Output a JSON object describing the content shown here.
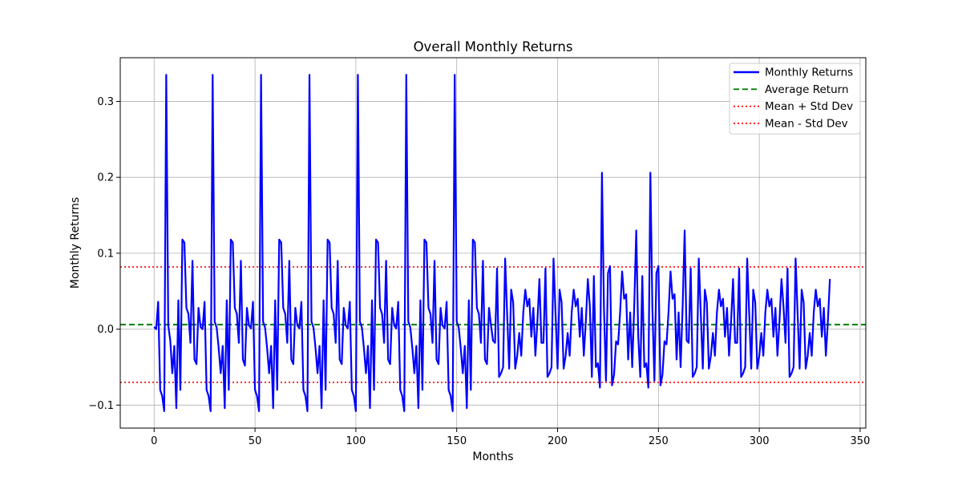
{
  "chart_data": {
    "type": "line",
    "title": "Overall Monthly Returns",
    "xlabel": "Months",
    "ylabel": "Monthly Returns",
    "xlim": [
      -16.8,
      352.8
    ],
    "ylim": [
      -0.1303,
      0.3575
    ],
    "xticks": [
      0,
      50,
      100,
      150,
      200,
      250,
      300,
      350
    ],
    "xtick_labels": [
      "0",
      "50",
      "100",
      "150",
      "200",
      "250",
      "300",
      "350"
    ],
    "yticks": [
      -0.1,
      0.0,
      0.1,
      0.2,
      0.3
    ],
    "ytick_labels": [
      "−0.1",
      "0.0",
      "0.1",
      "0.2",
      "0.3"
    ],
    "grid": true,
    "legend_position": "top-right",
    "colors": {
      "returns": "#0000ff",
      "average": "#008000",
      "std_bands": "#ff0000"
    },
    "series": [
      {
        "name": "Monthly Returns",
        "style": "solid",
        "x": [
          0,
          1,
          2,
          3,
          4,
          5,
          6,
          7,
          8,
          9,
          10,
          11,
          12,
          13,
          14,
          15,
          16,
          17,
          18,
          19,
          20,
          21,
          22,
          23,
          24,
          25,
          26,
          27,
          28,
          29,
          30,
          31,
          32,
          33,
          34,
          35,
          36,
          37,
          38,
          39,
          40,
          41,
          42,
          43,
          44,
          45,
          46,
          47,
          48,
          49,
          50,
          51,
          52,
          53,
          54,
          55,
          56,
          57,
          58,
          59,
          60,
          61,
          62,
          63,
          64,
          65,
          66,
          67,
          68,
          69,
          70,
          71,
          72,
          73,
          74,
          75,
          76,
          77,
          78,
          79,
          80,
          81,
          82,
          83,
          84,
          85,
          86,
          87,
          88,
          89,
          90,
          91,
          92,
          93,
          94,
          95,
          96,
          97,
          98,
          99,
          100,
          101,
          102,
          103,
          104,
          105,
          106,
          107,
          108,
          109,
          110,
          111,
          112,
          113,
          114,
          115,
          116,
          117,
          118,
          119,
          120,
          121,
          122,
          123,
          124,
          125,
          126,
          127,
          128,
          129,
          130,
          131,
          132,
          133,
          134,
          135,
          136,
          137,
          138,
          139,
          140,
          141,
          142,
          143,
          144,
          145,
          146,
          147,
          148,
          149,
          150,
          151,
          152,
          153,
          154,
          155,
          156,
          157,
          158,
          159,
          160,
          161,
          162,
          163,
          164,
          165,
          166,
          167,
          168,
          169,
          170,
          171,
          172,
          173,
          174,
          175,
          176,
          177,
          178,
          179,
          180,
          181,
          182,
          183,
          184,
          185,
          186,
          187,
          188,
          189,
          190,
          191,
          192,
          193,
          194,
          195,
          196,
          197,
          198,
          199,
          200,
          201,
          202,
          203,
          204,
          205,
          206,
          207,
          208,
          209,
          210,
          211,
          212,
          213,
          214,
          215,
          216,
          217,
          218,
          219,
          220,
          221,
          222,
          223,
          224,
          225,
          226,
          227,
          228,
          229,
          230,
          231,
          232,
          233,
          234,
          235,
          236,
          237,
          238,
          239,
          240,
          241,
          242,
          243,
          244,
          245,
          246,
          247,
          248,
          249,
          250,
          251,
          252,
          253,
          254,
          255,
          256,
          257,
          258,
          259,
          260,
          261,
          262,
          263,
          264,
          265,
          266,
          267,
          268,
          269,
          270,
          271,
          272,
          273,
          274,
          275,
          276,
          277,
          278,
          279,
          280,
          281,
          282,
          283,
          284,
          285,
          286,
          287,
          288,
          289,
          290,
          291,
          292,
          293,
          294,
          295,
          296,
          297,
          298,
          299,
          300,
          301,
          302,
          303,
          304,
          305,
          306,
          307,
          308,
          309,
          310,
          311,
          312,
          313,
          314,
          315,
          316,
          317,
          318,
          319,
          320,
          321,
          322,
          323,
          324,
          325,
          326,
          327,
          328,
          329,
          330,
          331,
          332,
          333,
          334,
          335
        ],
        "y": [
          0.003,
          0.0,
          0.036,
          -0.08,
          -0.088,
          -0.108,
          0.335,
          0.005,
          -0.015,
          -0.058,
          -0.022,
          -0.104,
          0.038,
          -0.08,
          0.118,
          0.114,
          0.028,
          0.02,
          -0.018,
          0.09,
          -0.04,
          -0.046,
          0.028,
          0.003,
          0.0,
          0.036,
          -0.08,
          -0.088,
          -0.108,
          0.335,
          0.01,
          0.002,
          -0.025,
          -0.058,
          -0.022,
          -0.104,
          0.038,
          -0.08,
          0.118,
          0.114,
          0.028,
          0.02,
          -0.018,
          0.09,
          -0.04,
          -0.048,
          0.028,
          0.005,
          0.001,
          0.036,
          -0.08,
          -0.088,
          -0.108,
          0.335,
          0.01,
          0.002,
          -0.025,
          -0.058,
          -0.022,
          -0.104,
          0.038,
          -0.08,
          0.118,
          0.114,
          0.028,
          0.02,
          -0.018,
          0.09,
          -0.04,
          -0.046,
          0.028,
          0.005,
          0.001,
          0.036,
          -0.08,
          -0.088,
          -0.108,
          0.335,
          0.01,
          0.002,
          -0.025,
          -0.058,
          -0.022,
          -0.104,
          0.038,
          -0.08,
          0.118,
          0.114,
          0.028,
          0.02,
          -0.018,
          0.09,
          -0.04,
          -0.046,
          0.028,
          0.005,
          0.001,
          0.036,
          -0.08,
          -0.088,
          -0.108,
          0.335,
          0.01,
          0.002,
          -0.025,
          -0.058,
          -0.022,
          -0.104,
          0.038,
          -0.08,
          0.118,
          0.114,
          0.028,
          0.02,
          -0.018,
          0.09,
          -0.04,
          -0.046,
          0.028,
          0.005,
          0.001,
          0.036,
          -0.08,
          -0.088,
          -0.108,
          0.335,
          0.01,
          0.002,
          -0.025,
          -0.058,
          -0.022,
          -0.104,
          0.038,
          -0.08,
          0.118,
          0.114,
          0.028,
          0.02,
          -0.018,
          0.09,
          -0.04,
          -0.046,
          0.028,
          0.005,
          0.001,
          0.036,
          -0.08,
          -0.088,
          -0.108,
          0.335,
          0.01,
          0.002,
          -0.025,
          -0.058,
          -0.022,
          -0.104,
          0.038,
          -0.08,
          0.118,
          0.114,
          0.028,
          0.02,
          -0.018,
          0.09,
          -0.04,
          -0.046,
          0.028,
          0.005,
          -0.015,
          -0.018,
          0.08,
          -0.063,
          -0.058,
          -0.05,
          0.093,
          0.02,
          -0.052,
          0.052,
          0.035,
          -0.052,
          -0.035,
          -0.005,
          -0.035,
          0.022,
          0.052,
          0.03,
          0.04,
          -0.01,
          0.028,
          -0.035,
          0.01,
          0.066,
          -0.018,
          -0.018,
          0.08,
          -0.063,
          -0.058,
          -0.05,
          0.093,
          0.02,
          -0.052,
          0.052,
          0.035,
          -0.052,
          -0.035,
          -0.005,
          -0.035,
          0.022,
          0.052,
          0.03,
          0.04,
          -0.01,
          0.028,
          -0.035,
          0.01,
          0.066,
          0.03,
          -0.063,
          0.07,
          -0.05,
          -0.045,
          -0.077,
          0.206,
          0.028,
          -0.068,
          0.074,
          0.083,
          -0.074,
          -0.06,
          -0.016,
          -0.02,
          0.022,
          0.076,
          0.04,
          0.046,
          -0.04,
          0.022,
          -0.05,
          0.03,
          0.13,
          -0.01,
          -0.063,
          0.07,
          -0.05,
          -0.045,
          -0.077,
          0.206,
          0.028,
          -0.068,
          0.074,
          0.083,
          -0.074,
          -0.06,
          -0.016,
          -0.02,
          0.022,
          0.076,
          0.04,
          0.046,
          -0.04,
          0.022,
          -0.05,
          0.03,
          0.13,
          -0.015,
          -0.018,
          0.08,
          -0.063,
          -0.058,
          -0.05,
          0.093,
          0.02,
          -0.052,
          0.052,
          0.035,
          -0.052,
          -0.035,
          -0.005,
          -0.035,
          0.022,
          0.052,
          0.03,
          0.04,
          -0.01,
          0.028,
          -0.035,
          0.01,
          0.066,
          -0.018,
          -0.018,
          0.08,
          -0.063,
          -0.058,
          -0.05,
          0.093,
          0.02,
          -0.052,
          0.052,
          0.035,
          -0.052,
          -0.035,
          -0.005,
          -0.035,
          0.022,
          0.052,
          0.03,
          0.04,
          -0.01,
          0.028,
          -0.035,
          0.01,
          0.066,
          0.03,
          -0.018,
          0.08,
          -0.063,
          -0.058,
          -0.05,
          0.093,
          0.02,
          -0.052,
          0.052,
          0.035,
          -0.052,
          -0.035,
          -0.005,
          -0.035,
          0.022,
          0.052,
          0.03,
          0.04,
          -0.01,
          0.028,
          -0.035,
          0.01,
          0.066
        ]
      },
      {
        "name": "Average Return",
        "style": "dashed",
        "value": 0.006
      },
      {
        "name": "Mean + Std Dev",
        "style": "dotted",
        "value": 0.082
      },
      {
        "name": "Mean - Std Dev",
        "style": "dotted",
        "value": -0.07
      }
    ]
  }
}
